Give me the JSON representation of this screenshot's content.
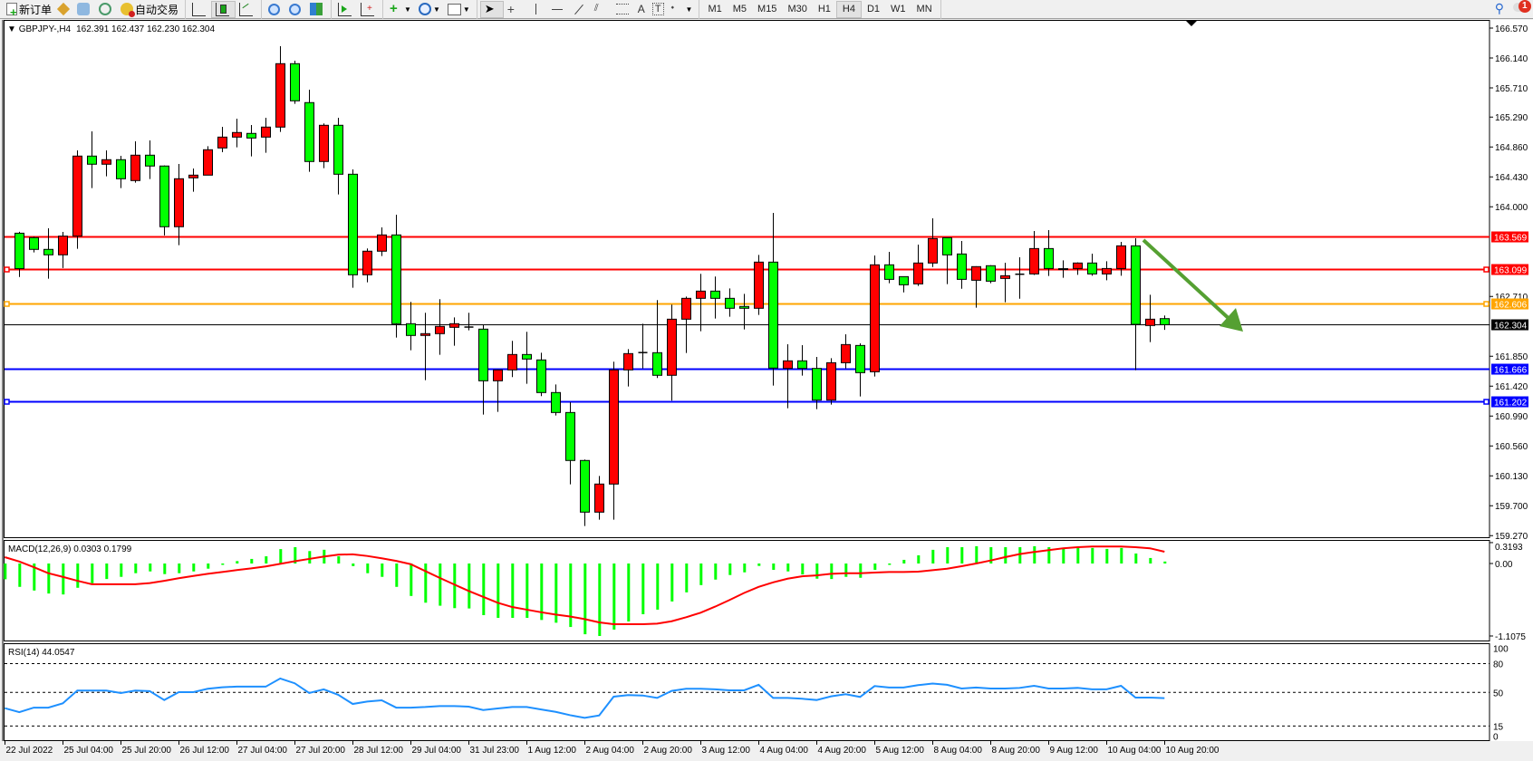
{
  "toolbar": {
    "new_order": "新订单",
    "auto_trading": "自动交易",
    "timeframes": [
      "M1",
      "M5",
      "M15",
      "M30",
      "H1",
      "H4",
      "D1",
      "W1",
      "MN"
    ],
    "active_timeframe": "H4",
    "text_tool": "T",
    "font_tool": "A",
    "notification_count": "1",
    "icons": [
      "new-order-icon",
      "market-watch-icon",
      "data-window-icon",
      "signals-icon",
      "auto-trading-icon",
      "bar-chart-icon",
      "candlestick-icon",
      "line-chart-icon",
      "zoom-in-icon",
      "zoom-out-icon",
      "tile-windows-icon",
      "autoscroll-icon",
      "chart-shift-icon",
      "indicators-icon",
      "periods-icon",
      "templates-icon",
      "cursor-icon",
      "crosshair-icon",
      "vertical-line-icon",
      "horizontal-line-icon",
      "trendline-icon",
      "equidistant-channel-icon",
      "fibonacci-icon",
      "text-icon",
      "text-label-icon",
      "arrows-icon",
      "search-icon",
      "notifications-icon"
    ]
  },
  "chart_header": {
    "symbol": "GBPJPY-,H4",
    "ohlc": "162.391 162.437 162.230 162.304"
  },
  "colors": {
    "bull_candle": "#ff0000",
    "bear_candle": "#00ff00",
    "macd_histogram": "#00ff00",
    "macd_signal": "#ff0000",
    "rsi_line": "#1e90ff",
    "arrow": "#55a032"
  },
  "chart_data": [
    {
      "type": "candlestick",
      "symbol": "GBPJPY-",
      "timeframe": "H4",
      "ylim": [
        159.27,
        166.57
      ],
      "y_ticks": [
        "166.570",
        "166.140",
        "165.710",
        "165.290",
        "164.860",
        "164.430",
        "164.000",
        "162.710",
        "161.850",
        "161.420",
        "160.990",
        "160.560",
        "160.130",
        "159.700",
        "159.270"
      ],
      "x_tick_labels": [
        "22 Jul 2022",
        "25 Jul 04:00",
        "25 Jul 20:00",
        "26 Jul 12:00",
        "27 Jul 04:00",
        "27 Jul 20:00",
        "28 Jul 12:00",
        "29 Jul 04:00",
        "31 Jul 23:00",
        "1 Aug 12:00",
        "2 Aug 04:00",
        "2 Aug 20:00",
        "3 Aug 12:00",
        "4 Aug 04:00",
        "4 Aug 20:00",
        "5 Aug 12:00",
        "8 Aug 04:00",
        "8 Aug 20:00",
        "9 Aug 12:00",
        "10 Aug 04:00",
        "10 Aug 20:00"
      ],
      "ohlc": [
        [
          163.62,
          163.64,
          162.99,
          163.11
        ],
        [
          163.556,
          163.57,
          163.343,
          163.387
        ],
        [
          163.387,
          163.691,
          162.966,
          163.309
        ],
        [
          163.309,
          163.639,
          163.118,
          163.578
        ],
        [
          163.578,
          164.811,
          163.396,
          164.729
        ],
        [
          164.729,
          165.085,
          164.269,
          164.612
        ],
        [
          164.612,
          164.811,
          164.438,
          164.677
        ],
        [
          164.677,
          164.733,
          164.269,
          164.403
        ],
        [
          164.377,
          164.942,
          164.347,
          164.742
        ],
        [
          164.742,
          164.955,
          164.399,
          164.586
        ],
        [
          164.586,
          164.595,
          163.587,
          163.713
        ],
        [
          163.713,
          164.616,
          163.448,
          164.403
        ],
        [
          164.416,
          164.551,
          164.216,
          164.455
        ],
        [
          164.455,
          164.872,
          164.455,
          164.82
        ],
        [
          164.846,
          165.15,
          164.785,
          165.002
        ],
        [
          165.002,
          165.267,
          164.855,
          165.068
        ],
        [
          165.055,
          165.176,
          164.724,
          164.989
        ],
        [
          165.002,
          165.28,
          164.777,
          165.146
        ],
        [
          165.146,
          166.31,
          165.076,
          166.058
        ],
        [
          166.058,
          166.101,
          165.48,
          165.524
        ],
        [
          165.498,
          165.684,
          164.503,
          164.651
        ],
        [
          164.651,
          165.198,
          164.555,
          165.172
        ],
        [
          165.172,
          165.28,
          164.177,
          164.468
        ],
        [
          164.468,
          164.538,
          162.835,
          163.022
        ],
        [
          163.022,
          163.4,
          162.913,
          163.361
        ],
        [
          163.361,
          163.704,
          163.291,
          163.595
        ],
        [
          163.595,
          163.886,
          162.119,
          162.318
        ],
        [
          162.318,
          162.631,
          161.936,
          162.149
        ],
        [
          162.149,
          162.475,
          161.506,
          162.175
        ],
        [
          162.175,
          162.67,
          161.871,
          162.279
        ],
        [
          162.266,
          162.409,
          162.001,
          162.318
        ],
        [
          162.266,
          162.475,
          162.223,
          162.27
        ],
        [
          162.24,
          162.305,
          161.011,
          161.497
        ],
        [
          161.497,
          161.66,
          161.05,
          161.654
        ],
        [
          161.654,
          162.071,
          161.55,
          161.875
        ],
        [
          161.875,
          162.201,
          161.454,
          161.81
        ],
        [
          161.797,
          161.901,
          161.276,
          161.328
        ],
        [
          161.328,
          161.445,
          160.998,
          161.041
        ],
        [
          161.041,
          161.189,
          160.008,
          160.351
        ],
        [
          160.351,
          160.364,
          159.408,
          159.608
        ],
        [
          159.608,
          160.129,
          159.5,
          160.012
        ],
        [
          160.012,
          161.771,
          159.5,
          161.654
        ],
        [
          161.654,
          161.953,
          161.415,
          161.888
        ],
        [
          161.9,
          162.318,
          161.676,
          161.903
        ],
        [
          161.901,
          162.657,
          161.537,
          161.576
        ],
        [
          161.576,
          162.592,
          161.211,
          162.383
        ],
        [
          162.383,
          162.709,
          161.897,
          162.683
        ],
        [
          162.683,
          163.035,
          162.21,
          162.787
        ],
        [
          162.787,
          162.996,
          162.392,
          162.683
        ],
        [
          162.683,
          162.826,
          162.418,
          162.54
        ],
        [
          162.566,
          162.748,
          162.236,
          162.54
        ],
        [
          162.54,
          163.308,
          162.444,
          163.204
        ],
        [
          163.204,
          163.912,
          161.428,
          161.68
        ],
        [
          161.675,
          162.022,
          161.102,
          161.784
        ],
        [
          161.784,
          162.009,
          161.571,
          161.675
        ],
        [
          161.675,
          161.84,
          161.089,
          161.219
        ],
        [
          161.219,
          161.823,
          161.154,
          161.757
        ],
        [
          161.757,
          162.166,
          161.675,
          162.018
        ],
        [
          162.005,
          162.035,
          161.271,
          161.614
        ],
        [
          161.627,
          163.299,
          161.558,
          163.165
        ],
        [
          163.165,
          163.351,
          162.9,
          162.956
        ],
        [
          162.995,
          163.0,
          162.769,
          162.878
        ],
        [
          162.891,
          163.456,
          162.861,
          163.191
        ],
        [
          163.191,
          163.833,
          163.134,
          163.542
        ],
        [
          163.555,
          163.56,
          162.887,
          163.308
        ],
        [
          163.321,
          163.508,
          162.821,
          162.956
        ],
        [
          162.943,
          163.145,
          162.548,
          163.139
        ],
        [
          163.152,
          163.16,
          162.9,
          162.93
        ],
        [
          162.969,
          163.195,
          162.626,
          163.008
        ],
        [
          163.03,
          163.273,
          162.678,
          163.03
        ],
        [
          163.034,
          163.651,
          163.02,
          163.399
        ],
        [
          163.399,
          163.664,
          163.004,
          163.112
        ],
        [
          163.1,
          163.23,
          162.978,
          163.11
        ],
        [
          163.112,
          163.2,
          163.021,
          163.191
        ],
        [
          163.191,
          163.325,
          163.008,
          163.034
        ],
        [
          163.034,
          163.217,
          162.943,
          163.112
        ],
        [
          163.112,
          163.495,
          163.008,
          163.438
        ],
        [
          163.438,
          163.547,
          161.649,
          162.309
        ],
        [
          162.292,
          162.735,
          162.053,
          162.383
        ],
        [
          162.391,
          162.437,
          162.23,
          162.304
        ]
      ],
      "horizontal_levels": [
        {
          "value": "163.569",
          "color": "#ff0000"
        },
        {
          "value": "163.099",
          "color": "#ff0000"
        },
        {
          "value": "162.606",
          "color": "#ffa500"
        },
        {
          "value": "162.304",
          "color": "#000000"
        },
        {
          "value": "161.666",
          "color": "#0000ff"
        },
        {
          "value": "161.202",
          "color": "#0000ff"
        }
      ],
      "annotations": [
        {
          "type": "arrow",
          "from": [
            163.55,
            "10 Aug 08:00"
          ],
          "to": [
            161.84,
            "11 Aug 04:00"
          ],
          "color": "#55a032"
        }
      ],
      "grid": false
    },
    {
      "type": "bar",
      "title": "MACD(12,26,9) 0.0303 0.1799",
      "ylim": [
        -1.1075,
        0.3193
      ],
      "y_ticks": [
        "0.3193",
        "0.00",
        "-1.1075"
      ],
      "histogram": [
        -0.241,
        -0.357,
        -0.413,
        -0.459,
        -0.473,
        -0.371,
        -0.302,
        -0.237,
        -0.204,
        -0.148,
        -0.121,
        -0.162,
        -0.148,
        -0.121,
        -0.079,
        -0.02,
        0.037,
        0.07,
        0.11,
        0.22,
        0.25,
        0.19,
        0.21,
        0.11,
        -0.04,
        -0.148,
        -0.204,
        -0.357,
        -0.496,
        -0.599,
        -0.645,
        -0.682,
        -0.687,
        -0.789,
        -0.831,
        -0.831,
        -0.831,
        -0.863,
        -0.905,
        -0.97,
        -1.081,
        -1.1075,
        -1.01,
        -0.886,
        -0.775,
        -0.705,
        -0.58,
        -0.441,
        -0.33,
        -0.246,
        -0.176,
        -0.135,
        -0.037,
        -0.097,
        -0.121,
        -0.167,
        -0.232,
        -0.237,
        -0.204,
        -0.218,
        -0.097,
        -0.01,
        0.056,
        0.125,
        0.209,
        0.25,
        0.25,
        0.264,
        0.25,
        0.25,
        0.25,
        0.264,
        0.25,
        0.237,
        0.237,
        0.237,
        0.223,
        0.237,
        0.153,
        0.084,
        0.0303
      ],
      "signal": [
        0.097,
        0.03,
        -0.056,
        -0.148,
        -0.204,
        -0.264,
        -0.316,
        -0.316,
        -0.316,
        -0.316,
        -0.3,
        -0.265,
        -0.225,
        -0.19,
        -0.158,
        -0.13,
        -0.1,
        -0.075,
        -0.045,
        -0.005,
        0.035,
        0.07,
        0.105,
        0.135,
        0.14,
        0.115,
        0.08,
        0.04,
        -0.01,
        -0.115,
        -0.22,
        -0.32,
        -0.42,
        -0.51,
        -0.6,
        -0.665,
        -0.705,
        -0.745,
        -0.78,
        -0.81,
        -0.85,
        -0.9,
        -0.928,
        -0.928,
        -0.928,
        -0.919,
        -0.882,
        -0.821,
        -0.752,
        -0.659,
        -0.557,
        -0.45,
        -0.357,
        -0.288,
        -0.232,
        -0.195,
        -0.181,
        -0.158,
        -0.148,
        -0.148,
        -0.139,
        -0.13,
        -0.13,
        -0.125,
        -0.102,
        -0.079,
        -0.042,
        0,
        0.046,
        0.097,
        0.144,
        0.176,
        0.204,
        0.232,
        0.25,
        0.26,
        0.26,
        0.26,
        0.25,
        0.232,
        0.1799
      ]
    },
    {
      "type": "line",
      "title": "RSI(14) 44.0547",
      "ylim": [
        0,
        100
      ],
      "y_ticks": [
        "100",
        "80",
        "50",
        "15",
        "0"
      ],
      "levels": [
        80,
        50,
        15
      ],
      "values": [
        33.6,
        29.5,
        34.2,
        34.2,
        38.6,
        51.9,
        51.9,
        51.9,
        49.4,
        51.9,
        51.3,
        42.1,
        50.3,
        50.3,
        53.8,
        55.4,
        56,
        56,
        56,
        64.5,
        59.5,
        49.4,
        53.2,
        47.5,
        38,
        40.5,
        41.8,
        34.2,
        34.2,
        34.8,
        35.8,
        35.8,
        35.2,
        31.7,
        33.3,
        34.8,
        34.8,
        32.3,
        29.8,
        26.3,
        23.5,
        26,
        45.6,
        47.2,
        46.8,
        44.3,
        51.6,
        53.8,
        53.8,
        53.2,
        52.2,
        52.2,
        57.9,
        44.3,
        44.3,
        43.4,
        42.1,
        45.9,
        48.1,
        45.3,
        56.6,
        55.1,
        55.1,
        57.6,
        59.2,
        57.9,
        54.1,
        55.1,
        54.1,
        54.1,
        54.7,
        56.9,
        54.1,
        54.1,
        54.7,
        53.2,
        53.2,
        56.9,
        44.6,
        44.6,
        44.0547
      ]
    }
  ]
}
